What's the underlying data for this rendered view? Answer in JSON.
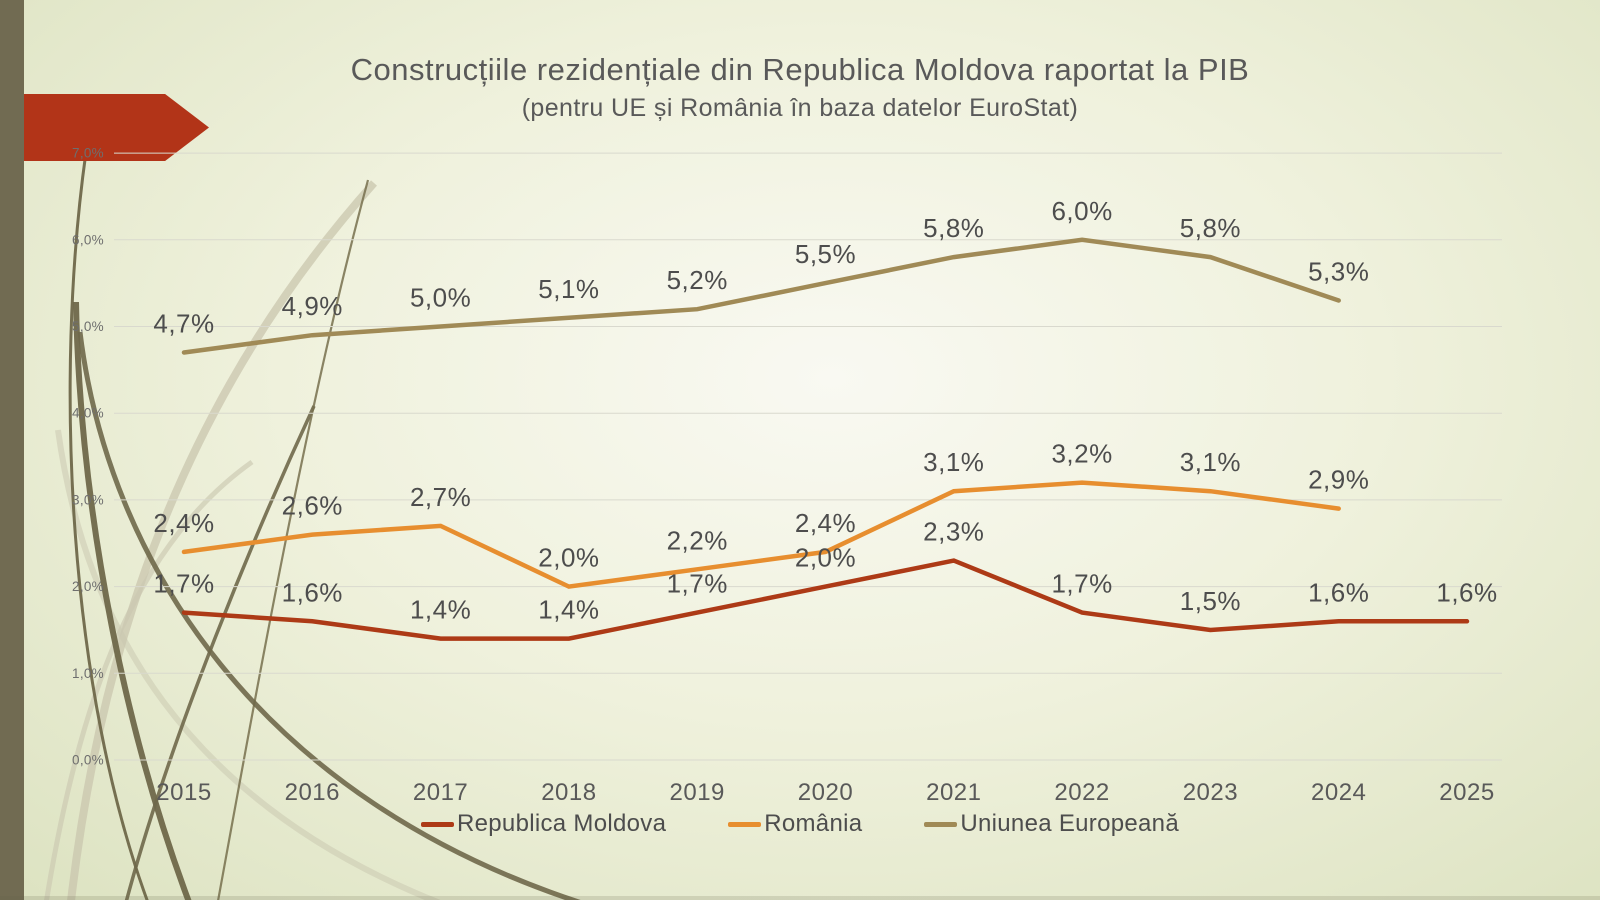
{
  "slide": {
    "title": "Construcțiile rezidențiale din Republica Moldova raportat la PIB",
    "subtitle": "(pentru UE și România în baza datelor EuroStat)"
  },
  "chart_data": {
    "type": "line",
    "categories": [
      "2015",
      "2016",
      "2017",
      "2018",
      "2019",
      "2020",
      "2021",
      "2022",
      "2023",
      "2024",
      "2025"
    ],
    "series": [
      {
        "name": "Republica Moldova",
        "color": "#ad3a16",
        "values": [
          1.7,
          1.6,
          1.4,
          1.4,
          1.7,
          2.0,
          2.3,
          1.7,
          1.5,
          1.6,
          1.6
        ],
        "labels": [
          "1,7%",
          "1,6%",
          "1,4%",
          "1,4%",
          "1,7%",
          "2,0%",
          "2,3%",
          "1,7%",
          "1,5%",
          "1,6%",
          "1,6%"
        ]
      },
      {
        "name": "România",
        "color": "#e78e2f",
        "values": [
          2.4,
          2.6,
          2.7,
          2.0,
          2.2,
          2.4,
          3.1,
          3.2,
          3.1,
          2.9
        ],
        "labels": [
          "2,4%",
          "2,6%",
          "2,7%",
          "2,0%",
          "2,2%",
          "2,4%",
          "3,1%",
          "3,2%",
          "3,1%",
          "2,9%"
        ]
      },
      {
        "name": "Uniunea Europeană",
        "color": "#a08a56",
        "values": [
          4.7,
          4.9,
          5.0,
          5.1,
          5.2,
          5.5,
          5.8,
          6.0,
          5.8,
          5.3
        ],
        "labels": [
          "4,7%",
          "4,9%",
          "5,0%",
          "5,1%",
          "5,2%",
          "5,5%",
          "5,8%",
          "6,0%",
          "5,8%",
          "5,3%"
        ]
      }
    ],
    "y_axis": {
      "min": 0,
      "max": 7,
      "step": 1,
      "tick_labels": [
        "0,0%",
        "1,0%",
        "2,0%",
        "3,0%",
        "4,0%",
        "5,0%",
        "6,0%",
        "7,0%"
      ]
    },
    "x_axis": {
      "tick_labels": [
        "2015",
        "2016",
        "2017",
        "2018",
        "2019",
        "2020",
        "2021",
        "2022",
        "2023",
        "2024",
        "2025"
      ]
    },
    "grid": true,
    "legend_position": "bottom",
    "decimal_separator": ","
  },
  "colors": {
    "accent_arrow": "#b23418",
    "left_bar": "#716b52",
    "gridline": "#d9d9ce",
    "title_text": "#595959",
    "data_label_text": "#4d4d4d",
    "grass_dark": "#6f684a",
    "grass_light": "#c9c6ad"
  }
}
